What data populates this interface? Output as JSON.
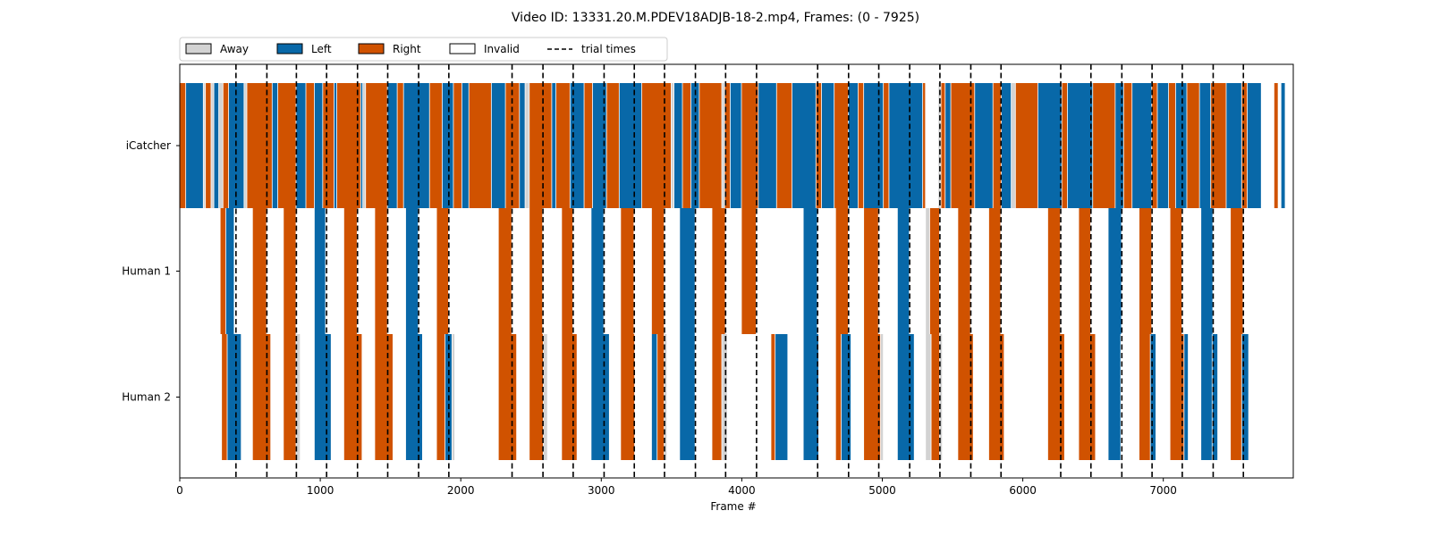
{
  "chart_data": {
    "type": "bar",
    "title": "Video ID: 13331.20.M.PDEV18ADJB-18-2.mp4, Frames: (0 - 7925)",
    "xlabel": "Frame #",
    "ylabel": "",
    "xlim": [
      0,
      7925
    ],
    "xticks": [
      0,
      1000,
      2000,
      3000,
      4000,
      5000,
      6000,
      7000
    ],
    "rows": [
      "iCatcher",
      "Human 1",
      "Human 2"
    ],
    "legend": {
      "placement": "top-left, above plot",
      "entries": [
        {
          "label": "Away",
          "color": "#d3d3d3"
        },
        {
          "label": "Left",
          "color": "#0868a8"
        },
        {
          "label": "Right",
          "color": "#d05200"
        },
        {
          "label": "Invalid",
          "color": "#ffffff"
        },
        {
          "label": "trial times",
          "style": "dashed",
          "color": "#000000"
        }
      ]
    },
    "colors": {
      "Away": "#d3d3d3",
      "Left": "#0868a8",
      "Right": "#d05200"
    },
    "trial_times": [
      400,
      620,
      830,
      1045,
      1265,
      1480,
      1700,
      1915,
      2365,
      2585,
      2800,
      3020,
      3235,
      3450,
      3670,
      3885,
      4105,
      4540,
      4760,
      4975,
      5195,
      5410,
      5630,
      5845,
      6270,
      6485,
      6705,
      6920,
      7135,
      7355,
      7570
    ],
    "segments": {
      "iCatcher": [
        {
          "start": 0,
          "end": 45,
          "label": "Right"
        },
        {
          "start": 45,
          "end": 170,
          "label": "Left"
        },
        {
          "start": 170,
          "end": 185,
          "label": "Away"
        },
        {
          "start": 185,
          "end": 225,
          "label": "Right"
        },
        {
          "start": 225,
          "end": 245,
          "label": "Away"
        },
        {
          "start": 245,
          "end": 280,
          "label": "Left"
        },
        {
          "start": 280,
          "end": 310,
          "label": "Away"
        },
        {
          "start": 310,
          "end": 350,
          "label": "Right"
        },
        {
          "start": 350,
          "end": 460,
          "label": "Left"
        },
        {
          "start": 460,
          "end": 480,
          "label": "Away"
        },
        {
          "start": 480,
          "end": 660,
          "label": "Right"
        },
        {
          "start": 660,
          "end": 700,
          "label": "Left"
        },
        {
          "start": 700,
          "end": 830,
          "label": "Right"
        },
        {
          "start": 830,
          "end": 900,
          "label": "Left"
        },
        {
          "start": 900,
          "end": 960,
          "label": "Right"
        },
        {
          "start": 960,
          "end": 1020,
          "label": "Left"
        },
        {
          "start": 1020,
          "end": 1100,
          "label": "Right"
        },
        {
          "start": 1100,
          "end": 1120,
          "label": "Left"
        },
        {
          "start": 1120,
          "end": 1290,
          "label": "Right"
        },
        {
          "start": 1290,
          "end": 1305,
          "label": "Left"
        },
        {
          "start": 1305,
          "end": 1325,
          "label": "Away"
        },
        {
          "start": 1325,
          "end": 1480,
          "label": "Right"
        },
        {
          "start": 1480,
          "end": 1550,
          "label": "Left"
        },
        {
          "start": 1550,
          "end": 1595,
          "label": "Right"
        },
        {
          "start": 1595,
          "end": 1780,
          "label": "Left"
        },
        {
          "start": 1780,
          "end": 1870,
          "label": "Right"
        },
        {
          "start": 1870,
          "end": 1950,
          "label": "Left"
        },
        {
          "start": 1950,
          "end": 2010,
          "label": "Right"
        },
        {
          "start": 2010,
          "end": 2060,
          "label": "Left"
        },
        {
          "start": 2060,
          "end": 2220,
          "label": "Right"
        },
        {
          "start": 2220,
          "end": 2320,
          "label": "Left"
        },
        {
          "start": 2320,
          "end": 2420,
          "label": "Right"
        },
        {
          "start": 2420,
          "end": 2460,
          "label": "Left"
        },
        {
          "start": 2460,
          "end": 2490,
          "label": "Away"
        },
        {
          "start": 2490,
          "end": 2650,
          "label": "Right"
        },
        {
          "start": 2650,
          "end": 2680,
          "label": "Left"
        },
        {
          "start": 2680,
          "end": 2780,
          "label": "Right"
        },
        {
          "start": 2780,
          "end": 2880,
          "label": "Left"
        },
        {
          "start": 2880,
          "end": 2940,
          "label": "Right"
        },
        {
          "start": 2940,
          "end": 3040,
          "label": "Left"
        },
        {
          "start": 3040,
          "end": 3130,
          "label": "Right"
        },
        {
          "start": 3130,
          "end": 3290,
          "label": "Left"
        },
        {
          "start": 3290,
          "end": 3500,
          "label": "Right"
        },
        {
          "start": 3500,
          "end": 3520,
          "label": "Away"
        },
        {
          "start": 3520,
          "end": 3580,
          "label": "Left"
        },
        {
          "start": 3580,
          "end": 3640,
          "label": "Right"
        },
        {
          "start": 3640,
          "end": 3700,
          "label": "Left"
        },
        {
          "start": 3700,
          "end": 3860,
          "label": "Right"
        },
        {
          "start": 3860,
          "end": 3880,
          "label": "Away"
        },
        {
          "start": 3880,
          "end": 3920,
          "label": "Right"
        },
        {
          "start": 3920,
          "end": 4000,
          "label": "Left"
        },
        {
          "start": 4000,
          "end": 4120,
          "label": "Right"
        },
        {
          "start": 4120,
          "end": 4250,
          "label": "Left"
        },
        {
          "start": 4250,
          "end": 4360,
          "label": "Right"
        },
        {
          "start": 4360,
          "end": 4530,
          "label": "Left"
        },
        {
          "start": 4530,
          "end": 4570,
          "label": "Right"
        },
        {
          "start": 4570,
          "end": 4660,
          "label": "Left"
        },
        {
          "start": 4660,
          "end": 4760,
          "label": "Right"
        },
        {
          "start": 4760,
          "end": 4830,
          "label": "Left"
        },
        {
          "start": 4830,
          "end": 4870,
          "label": "Right"
        },
        {
          "start": 4870,
          "end": 5010,
          "label": "Left"
        },
        {
          "start": 5010,
          "end": 5050,
          "label": "Right"
        },
        {
          "start": 5050,
          "end": 5290,
          "label": "Left"
        },
        {
          "start": 5290,
          "end": 5310,
          "label": "Right"
        },
        {
          "start": 5400,
          "end": 5420,
          "label": "Away"
        },
        {
          "start": 5420,
          "end": 5450,
          "label": "Right"
        },
        {
          "start": 5450,
          "end": 5490,
          "label": "Left"
        },
        {
          "start": 5490,
          "end": 5660,
          "label": "Right"
        },
        {
          "start": 5660,
          "end": 5790,
          "label": "Left"
        },
        {
          "start": 5790,
          "end": 5850,
          "label": "Right"
        },
        {
          "start": 5850,
          "end": 5920,
          "label": "Left"
        },
        {
          "start": 5920,
          "end": 5950,
          "label": "Away"
        },
        {
          "start": 5950,
          "end": 6110,
          "label": "Right"
        },
        {
          "start": 6110,
          "end": 6280,
          "label": "Left"
        },
        {
          "start": 6280,
          "end": 6320,
          "label": "Right"
        },
        {
          "start": 6320,
          "end": 6500,
          "label": "Left"
        },
        {
          "start": 6500,
          "end": 6660,
          "label": "Right"
        },
        {
          "start": 6660,
          "end": 6720,
          "label": "Left"
        },
        {
          "start": 6720,
          "end": 6780,
          "label": "Right"
        },
        {
          "start": 6780,
          "end": 6920,
          "label": "Left"
        },
        {
          "start": 6920,
          "end": 6960,
          "label": "Right"
        },
        {
          "start": 6960,
          "end": 7040,
          "label": "Left"
        },
        {
          "start": 7040,
          "end": 7090,
          "label": "Right"
        },
        {
          "start": 7090,
          "end": 7170,
          "label": "Left"
        },
        {
          "start": 7170,
          "end": 7260,
          "label": "Right"
        },
        {
          "start": 7260,
          "end": 7340,
          "label": "Left"
        },
        {
          "start": 7340,
          "end": 7450,
          "label": "Right"
        },
        {
          "start": 7450,
          "end": 7560,
          "label": "Left"
        },
        {
          "start": 7560,
          "end": 7600,
          "label": "Right"
        },
        {
          "start": 7600,
          "end": 7700,
          "label": "Left"
        },
        {
          "start": 7790,
          "end": 7820,
          "label": "Right"
        },
        {
          "start": 7840,
          "end": 7870,
          "label": "Left"
        }
      ],
      "Human 1": [
        {
          "start": 290,
          "end": 330,
          "label": "Right"
        },
        {
          "start": 330,
          "end": 390,
          "label": "Left"
        },
        {
          "start": 520,
          "end": 620,
          "label": "Right"
        },
        {
          "start": 740,
          "end": 830,
          "label": "Right"
        },
        {
          "start": 960,
          "end": 1040,
          "label": "Left"
        },
        {
          "start": 1170,
          "end": 1265,
          "label": "Right"
        },
        {
          "start": 1390,
          "end": 1480,
          "label": "Right"
        },
        {
          "start": 1610,
          "end": 1700,
          "label": "Left"
        },
        {
          "start": 1830,
          "end": 1915,
          "label": "Right"
        },
        {
          "start": 2270,
          "end": 2365,
          "label": "Right"
        },
        {
          "start": 2490,
          "end": 2585,
          "label": "Right"
        },
        {
          "start": 2720,
          "end": 2800,
          "label": "Right"
        },
        {
          "start": 2930,
          "end": 3020,
          "label": "Left"
        },
        {
          "start": 3140,
          "end": 3235,
          "label": "Right"
        },
        {
          "start": 3360,
          "end": 3450,
          "label": "Right"
        },
        {
          "start": 3560,
          "end": 3670,
          "label": "Left"
        },
        {
          "start": 3790,
          "end": 3885,
          "label": "Right"
        },
        {
          "start": 4000,
          "end": 4105,
          "label": "Right"
        },
        {
          "start": 4440,
          "end": 4540,
          "label": "Left"
        },
        {
          "start": 4670,
          "end": 4760,
          "label": "Right"
        },
        {
          "start": 4870,
          "end": 4975,
          "label": "Right"
        },
        {
          "start": 5110,
          "end": 5195,
          "label": "Left"
        },
        {
          "start": 5310,
          "end": 5340,
          "label": "Away"
        },
        {
          "start": 5340,
          "end": 5410,
          "label": "Right"
        },
        {
          "start": 5540,
          "end": 5630,
          "label": "Right"
        },
        {
          "start": 5760,
          "end": 5845,
          "label": "Right"
        },
        {
          "start": 6180,
          "end": 6270,
          "label": "Right"
        },
        {
          "start": 6400,
          "end": 6485,
          "label": "Right"
        },
        {
          "start": 6610,
          "end": 6705,
          "label": "Left"
        },
        {
          "start": 6830,
          "end": 6920,
          "label": "Right"
        },
        {
          "start": 7050,
          "end": 7135,
          "label": "Right"
        },
        {
          "start": 7270,
          "end": 7355,
          "label": "Left"
        },
        {
          "start": 7480,
          "end": 7570,
          "label": "Right"
        }
      ],
      "Human 2": [
        {
          "start": 300,
          "end": 340,
          "label": "Right"
        },
        {
          "start": 340,
          "end": 440,
          "label": "Left"
        },
        {
          "start": 520,
          "end": 650,
          "label": "Right"
        },
        {
          "start": 740,
          "end": 830,
          "label": "Right"
        },
        {
          "start": 830,
          "end": 860,
          "label": "Away"
        },
        {
          "start": 960,
          "end": 1080,
          "label": "Left"
        },
        {
          "start": 1170,
          "end": 1300,
          "label": "Right"
        },
        {
          "start": 1390,
          "end": 1520,
          "label": "Right"
        },
        {
          "start": 1610,
          "end": 1730,
          "label": "Left"
        },
        {
          "start": 1830,
          "end": 1890,
          "label": "Right"
        },
        {
          "start": 1890,
          "end": 1940,
          "label": "Left"
        },
        {
          "start": 1940,
          "end": 1960,
          "label": "Away"
        },
        {
          "start": 2270,
          "end": 2400,
          "label": "Right"
        },
        {
          "start": 2490,
          "end": 2590,
          "label": "Right"
        },
        {
          "start": 2590,
          "end": 2620,
          "label": "Away"
        },
        {
          "start": 2720,
          "end": 2830,
          "label": "Right"
        },
        {
          "start": 2930,
          "end": 3060,
          "label": "Left"
        },
        {
          "start": 3140,
          "end": 3240,
          "label": "Right"
        },
        {
          "start": 3360,
          "end": 3400,
          "label": "Left"
        },
        {
          "start": 3400,
          "end": 3450,
          "label": "Right"
        },
        {
          "start": 3450,
          "end": 3470,
          "label": "Away"
        },
        {
          "start": 3560,
          "end": 3670,
          "label": "Left"
        },
        {
          "start": 3790,
          "end": 3860,
          "label": "Right"
        },
        {
          "start": 3860,
          "end": 3900,
          "label": "Away"
        },
        {
          "start": 4210,
          "end": 4240,
          "label": "Right"
        },
        {
          "start": 4240,
          "end": 4330,
          "label": "Left"
        },
        {
          "start": 4440,
          "end": 4550,
          "label": "Left"
        },
        {
          "start": 4670,
          "end": 4710,
          "label": "Right"
        },
        {
          "start": 4710,
          "end": 4780,
          "label": "Left"
        },
        {
          "start": 4870,
          "end": 4990,
          "label": "Right"
        },
        {
          "start": 4990,
          "end": 5010,
          "label": "Away"
        },
        {
          "start": 5110,
          "end": 5230,
          "label": "Left"
        },
        {
          "start": 5310,
          "end": 5350,
          "label": "Away"
        },
        {
          "start": 5350,
          "end": 5410,
          "label": "Right"
        },
        {
          "start": 5410,
          "end": 5430,
          "label": "Away"
        },
        {
          "start": 5540,
          "end": 5650,
          "label": "Right"
        },
        {
          "start": 5760,
          "end": 5870,
          "label": "Right"
        },
        {
          "start": 6180,
          "end": 6300,
          "label": "Right"
        },
        {
          "start": 6400,
          "end": 6520,
          "label": "Right"
        },
        {
          "start": 6610,
          "end": 6700,
          "label": "Left"
        },
        {
          "start": 6830,
          "end": 6910,
          "label": "Right"
        },
        {
          "start": 6910,
          "end": 6950,
          "label": "Left"
        },
        {
          "start": 7050,
          "end": 7150,
          "label": "Right"
        },
        {
          "start": 7150,
          "end": 7180,
          "label": "Left"
        },
        {
          "start": 7270,
          "end": 7350,
          "label": "Left"
        },
        {
          "start": 7350,
          "end": 7390,
          "label": "Left"
        },
        {
          "start": 7480,
          "end": 7560,
          "label": "Right"
        },
        {
          "start": 7560,
          "end": 7610,
          "label": "Left"
        }
      ]
    },
    "grid": false
  }
}
